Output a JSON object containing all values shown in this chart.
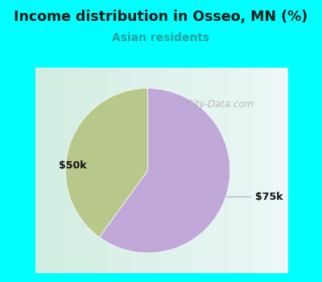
{
  "title": "Income distribution in Osseo, MN (%)",
  "subtitle": "Asian residents",
  "title_color": "#1a1a1a",
  "subtitle_color": "#20a0a0",
  "border_color": "#00FFFF",
  "panel_bg_left": "#d0ede0",
  "panel_bg_right": "#f0f8f8",
  "slices": [
    {
      "label": "$50k",
      "value": 40,
      "color": "#b8c88a"
    },
    {
      "label": "$75k",
      "value": 60,
      "color": "#c0a8d8"
    }
  ],
  "label_color": "#111111",
  "watermark": "City-Data.com",
  "watermark_color": "#aaaaaa",
  "start_angle": 90,
  "figsize": [
    4.0,
    3.5
  ],
  "dpi": 100,
  "border_width": 8
}
